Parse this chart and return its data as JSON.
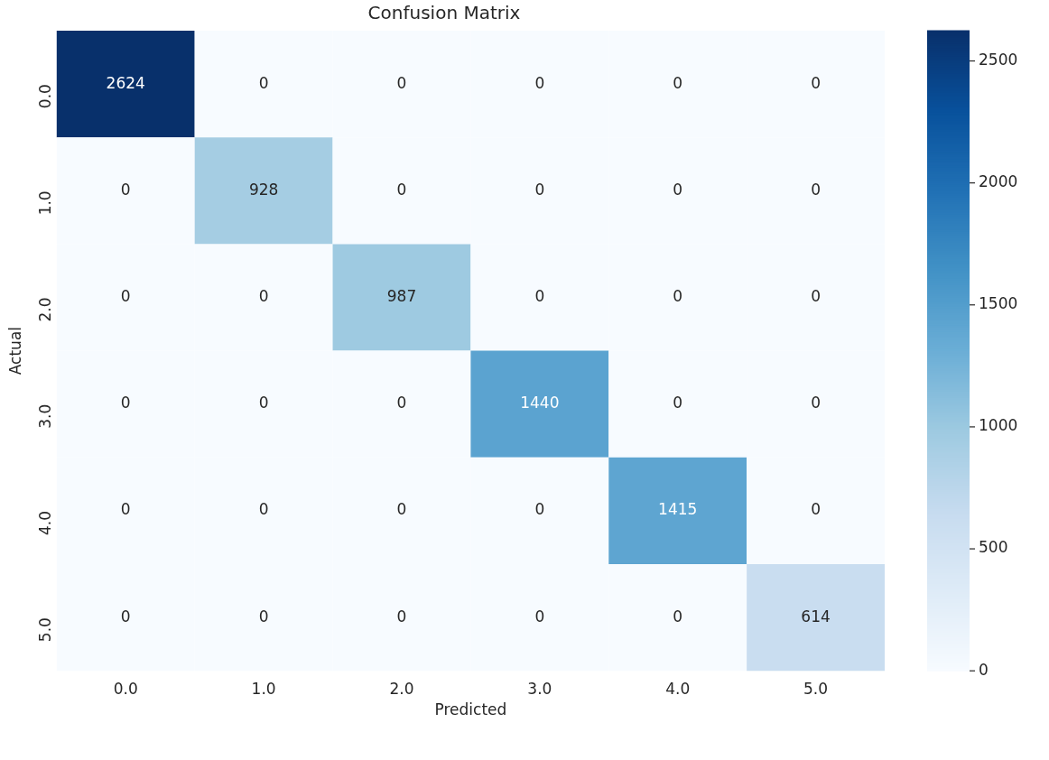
{
  "chart_data": {
    "type": "heatmap",
    "title": "Confusion Matrix",
    "xlabel": "Predicted",
    "ylabel": "Actual",
    "categories": [
      "0.0",
      "1.0",
      "2.0",
      "3.0",
      "4.0",
      "5.0"
    ],
    "y_categories": [
      "0.0",
      "1.0",
      "2.0",
      "3.0",
      "4.0",
      "5.0"
    ],
    "cells": [
      [
        2624,
        0,
        0,
        0,
        0,
        0
      ],
      [
        0,
        928,
        0,
        0,
        0,
        0
      ],
      [
        0,
        0,
        987,
        0,
        0,
        0
      ],
      [
        0,
        0,
        0,
        1440,
        0,
        0
      ],
      [
        0,
        0,
        0,
        0,
        1415,
        0
      ],
      [
        0,
        0,
        0,
        0,
        0,
        614
      ]
    ],
    "clim": [
      0,
      2624
    ],
    "cticks": [
      0,
      500,
      1000,
      1500,
      2000,
      2500
    ],
    "data_labels": true
  }
}
